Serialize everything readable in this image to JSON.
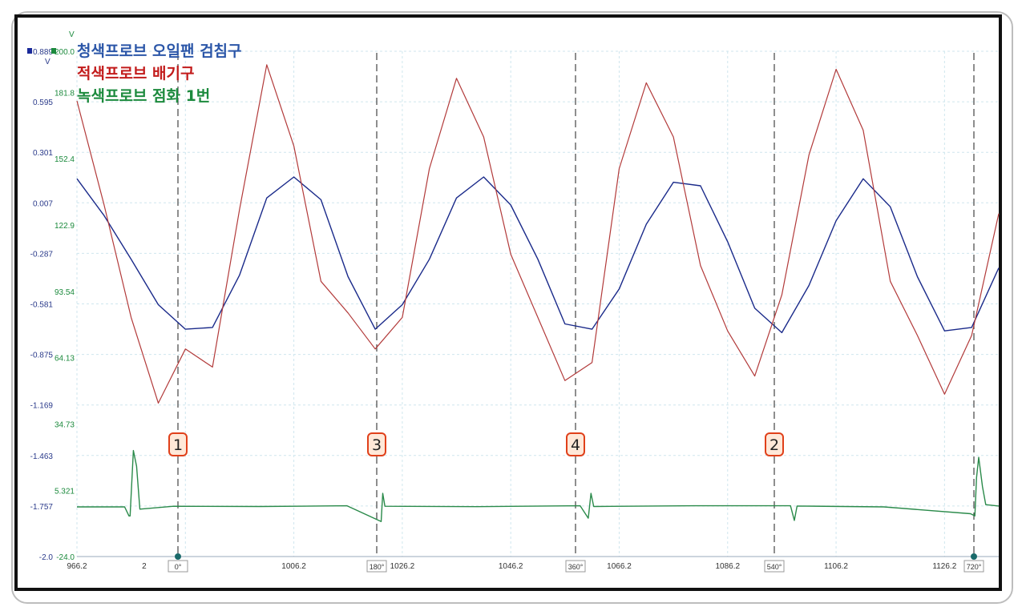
{
  "legend": [
    {
      "text": "청색프로브 오일팬 검침구",
      "color": "#2b56a8"
    },
    {
      "text": "적색프로브 배기구",
      "color": "#c21b1b"
    },
    {
      "text": "녹색프로브 점화 1번",
      "color": "#1c8a3d"
    }
  ],
  "markers": [
    {
      "label": "1",
      "angle": "0°"
    },
    {
      "label": "3",
      "angle": "180°"
    },
    {
      "label": "4",
      "angle": "360°"
    },
    {
      "label": "2",
      "angle": "540°"
    },
    {
      "label": "",
      "angle": "720°"
    }
  ],
  "colors": {
    "blue": "#1a2a8a",
    "red": "#b23a3a",
    "green": "#2a8a4a",
    "badge_fill": "#ffe8d8",
    "badge_stroke": "#e0401a"
  },
  "chart_data": {
    "type": "line",
    "x_ticks": [
      "966.2",
      "2",
      "1006.2",
      "1026.2",
      "1046.2",
      "1066.2",
      "1086.2",
      "1106.2",
      "1126.2"
    ],
    "x_range": [
      966.2,
      1136.2
    ],
    "axes": [
      {
        "name": "blue",
        "unit": "V",
        "range": [
          -2.0,
          0.889
        ],
        "ticks": [
          "0.889",
          "0.595",
          "0.301",
          "0.007",
          "-0.287",
          "-0.581",
          "-0.875",
          "-1.169",
          "-1.463",
          "-1.757",
          "-2.0"
        ]
      },
      {
        "name": "green",
        "unit": "V",
        "range": [
          -24.0,
          200.0
        ],
        "ticks": [
          "200.0",
          "181.8",
          "152.4",
          "122.9",
          "93.54",
          "64.13",
          "34.73",
          "5.321",
          "-24.0"
        ]
      }
    ],
    "series": [
      {
        "color": "blue",
        "x": [
          966.2,
          971.2,
          976.2,
          981.2,
          986.2,
          991.2,
          996.2,
          1001.2,
          1006.2,
          1011.2,
          1016.2,
          1021.2,
          1026.2,
          1031.2,
          1036.2,
          1041.2,
          1046.2,
          1051.2,
          1056.2,
          1061.2,
          1066.2,
          1071.2,
          1076.2,
          1081.2,
          1086.2,
          1091.2,
          1096.2,
          1101.2,
          1106.2,
          1111.2,
          1116.2,
          1121.2,
          1126.2,
          1131.2,
          1136.2
        ],
        "y": [
          0.16,
          -0.05,
          -0.3,
          -0.56,
          -0.7,
          -0.69,
          -0.39,
          0.05,
          0.17,
          0.04,
          -0.4,
          -0.7,
          -0.56,
          -0.3,
          0.05,
          0.17,
          0.01,
          -0.3,
          -0.67,
          -0.7,
          -0.47,
          -0.1,
          0.14,
          0.12,
          -0.2,
          -0.58,
          -0.72,
          -0.45,
          -0.08,
          0.16,
          0.0,
          -0.4,
          -0.71,
          -0.69,
          -0.35
        ]
      },
      {
        "color": "red",
        "x": [
          966.2,
          971.2,
          976.2,
          981.2,
          986.2,
          991.2,
          996.2,
          1001.2,
          1006.2,
          1011.2,
          1016.2,
          1021.2,
          1026.2,
          1031.2,
          1036.2,
          1041.2,
          1046.2,
          1051.2,
          1056.2,
          1061.2,
          1066.2,
          1071.2,
          1076.2,
          1081.2,
          1086.2,
          1091.2,
          1096.2,
          1101.2,
          1106.2,
          1111.2,
          1116.2,
          1121.2,
          1126.2,
          1131.2,
          1136.2
        ],
        "y": [
          178,
          132,
          82,
          44,
          68,
          60,
          130,
          194,
          158,
          98,
          84,
          68,
          82,
          148,
          188,
          162,
          110,
          82,
          54,
          62,
          148,
          186,
          162,
          105,
          76,
          56,
          92,
          154,
          192,
          165,
          98,
          74,
          48,
          74,
          128
        ]
      },
      {
        "color": "green",
        "x": [
          966.2,
          975.0,
          975.8,
          976.0,
          976.6,
          977.2,
          977.8,
          984.0,
          1000.0,
          1016.0,
          1022.3,
          1022.6,
          1023.0,
          1040.0,
          1059.0,
          1060.5,
          1061.0,
          1061.5,
          1080.0,
          1097.8,
          1098.5,
          1099.0,
          1115.0,
          1131.0,
          1131.8,
          1132.1,
          1132.5,
          1133.2,
          1133.8,
          1136.2
        ],
        "y": [
          -2.0,
          -2.0,
          -6.0,
          -6.0,
          23.0,
          16.0,
          -3.0,
          -1.7,
          -1.8,
          -1.5,
          -8.5,
          4.0,
          -1.7,
          -1.9,
          -1.5,
          -7.0,
          4.0,
          -1.8,
          -1.5,
          -1.5,
          -8.0,
          -1.6,
          -2.0,
          -5.0,
          -6.0,
          11.0,
          20.0,
          7.0,
          -1.0,
          -1.6
        ]
      }
    ],
    "grid": true,
    "xlabel": "",
    "ylabel": ""
  }
}
